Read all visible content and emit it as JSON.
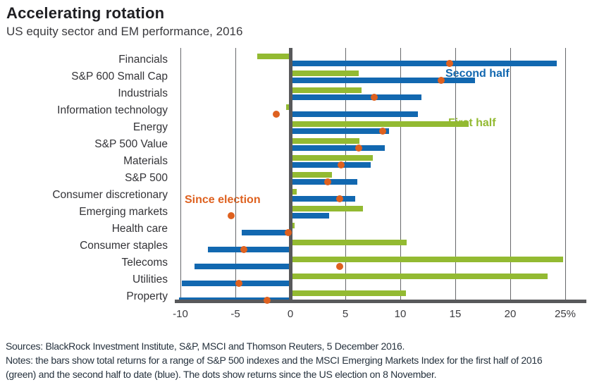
{
  "header": {
    "title": "Accelerating rotation",
    "subtitle": "US equity sector and EM performance, 2016"
  },
  "chart_data": {
    "type": "bar",
    "orientation": "horizontal",
    "title": "Accelerating rotation",
    "subtitle": "US equity sector and EM performance, 2016",
    "categories": [
      "Financials",
      "S&P 600 Small Cap",
      "Industrials",
      "Information technology",
      "Energy",
      "S&P 500 Value",
      "Materials",
      "S&P 500",
      "Consumer discretionary",
      "Emerging markets",
      "Health care",
      "Consumer staples",
      "Telecoms",
      "Utilities",
      "Property"
    ],
    "series": [
      {
        "name": "First half",
        "style": "bar",
        "color": "#93ba32",
        "values": [
          -3.0,
          6.2,
          6.5,
          -0.4,
          16.2,
          6.3,
          7.5,
          3.8,
          0.6,
          6.6,
          0.4,
          10.6,
          24.8,
          23.4,
          10.5
        ]
      },
      {
        "name": "Second half",
        "style": "bar",
        "color": "#1268b0",
        "values": [
          24.2,
          16.8,
          11.9,
          11.6,
          9.0,
          8.6,
          7.3,
          6.1,
          5.9,
          3.5,
          -4.4,
          -7.5,
          -8.7,
          -9.9,
          -10.1
        ]
      },
      {
        "name": "Since election",
        "style": "dot",
        "color": "#de611f",
        "values": [
          14.5,
          13.7,
          7.6,
          -1.3,
          8.4,
          6.2,
          4.6,
          3.4,
          4.5,
          -5.4,
          -0.2,
          -4.2,
          4.5,
          -4.7,
          -2.1
        ]
      }
    ],
    "xlim": [
      -10,
      25
    ],
    "xticks": [
      -10,
      -5,
      0,
      5,
      10,
      15,
      20,
      25
    ],
    "xtick_labels": [
      "-10",
      "-5",
      "0",
      "5",
      "10",
      "15",
      "20",
      "25%"
    ],
    "grid": true,
    "unit": "percent",
    "annotations": [
      {
        "text": "Second half",
        "color": "#1268b0"
      },
      {
        "text": "First half",
        "color": "#93ba32"
      },
      {
        "text": "Since election",
        "color": "#de611f"
      }
    ]
  },
  "footer": {
    "lines": [
      "Sources: BlackRock Investment Institute, S&P, MSCI and Thomson Reuters, 5 December 2016.",
      "Notes: the bars show total returns for a range of S&P 500 indexes and the MSCI Emerging Markets Index for the first half of 2016",
      "(green) and the second half to date (blue). The dots show returns since the US election on 8 November."
    ]
  }
}
